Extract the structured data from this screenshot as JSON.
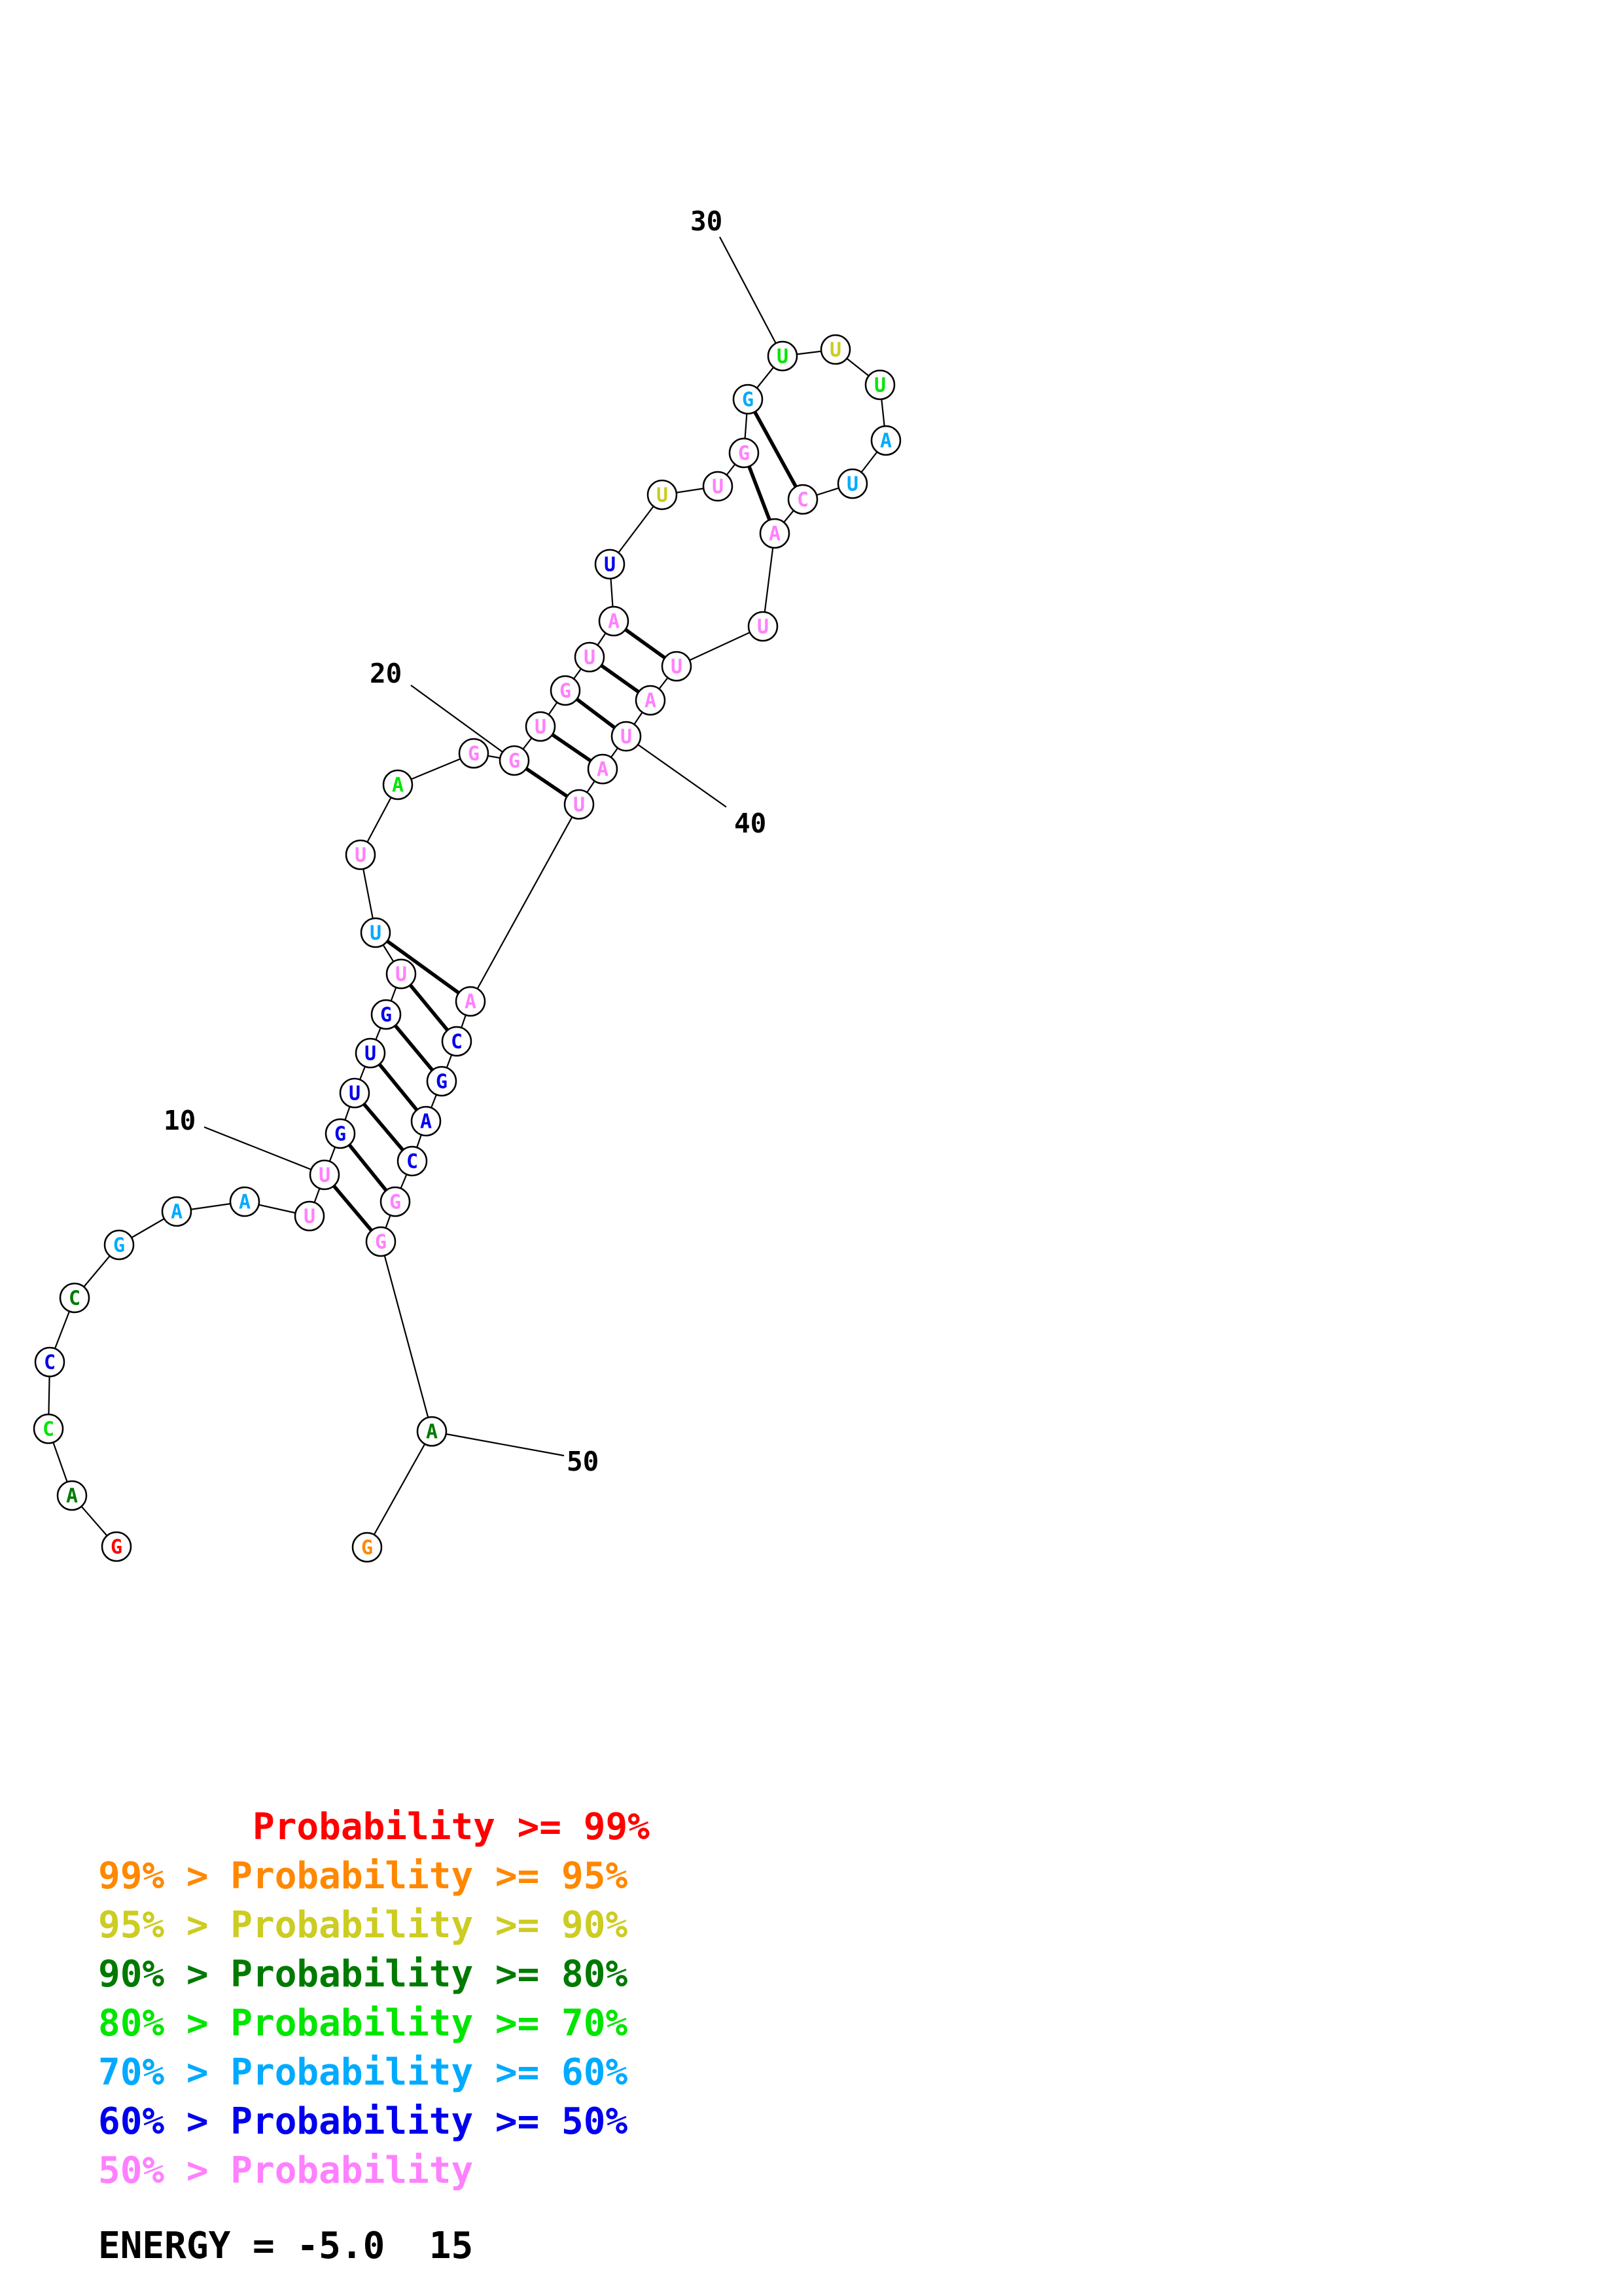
{
  "sequence": [
    {
      "base": "G",
      "color": "#ff0000"
    },
    {
      "base": "A",
      "color": "#007a00"
    },
    {
      "base": "C",
      "color": "#00e600"
    },
    {
      "base": "C",
      "color": "#0000ee"
    },
    {
      "base": "C",
      "color": "#007a00"
    },
    {
      "base": "G",
      "color": "#00aaff"
    },
    {
      "base": "A",
      "color": "#00aaff"
    },
    {
      "base": "A",
      "color": "#00aaff"
    },
    {
      "base": "U",
      "color": "#ff80ff"
    },
    {
      "base": "U",
      "color": "#ff80ff"
    },
    {
      "base": "G",
      "color": "#0000ee"
    },
    {
      "base": "U",
      "color": "#0000ee"
    },
    {
      "base": "U",
      "color": "#0000ee"
    },
    {
      "base": "G",
      "color": "#0000ee"
    },
    {
      "base": "U",
      "color": "#ff80ff"
    },
    {
      "base": "U",
      "color": "#00aaff"
    },
    {
      "base": "U",
      "color": "#ff80ff"
    },
    {
      "base": "A",
      "color": "#00e600"
    },
    {
      "base": "G",
      "color": "#ff80ff"
    },
    {
      "base": "G",
      "color": "#ff80ff"
    },
    {
      "base": "U",
      "color": "#ff80ff"
    },
    {
      "base": "G",
      "color": "#ff80ff"
    },
    {
      "base": "U",
      "color": "#ff80ff"
    },
    {
      "base": "A",
      "color": "#ff80ff"
    },
    {
      "base": "U",
      "color": "#0000ee"
    },
    {
      "base": "U",
      "color": "#cccc22"
    },
    {
      "base": "U",
      "color": "#ff80ff"
    },
    {
      "base": "G",
      "color": "#ff80ff"
    },
    {
      "base": "G",
      "color": "#00aaff"
    },
    {
      "base": "U",
      "color": "#00e600"
    },
    {
      "base": "U",
      "color": "#cccc22"
    },
    {
      "base": "U",
      "color": "#00e600"
    },
    {
      "base": "A",
      "color": "#00aaff"
    },
    {
      "base": "U",
      "color": "#00aaff"
    },
    {
      "base": "C",
      "color": "#ff80ff"
    },
    {
      "base": "A",
      "color": "#ff80ff"
    },
    {
      "base": "U",
      "color": "#ff80ff"
    },
    {
      "base": "U",
      "color": "#ff80ff"
    },
    {
      "base": "A",
      "color": "#ff80ff"
    },
    {
      "base": "U",
      "color": "#ff80ff"
    },
    {
      "base": "A",
      "color": "#ff80ff"
    },
    {
      "base": "U",
      "color": "#ff80ff"
    },
    {
      "base": "A",
      "color": "#ff80ff"
    },
    {
      "base": "C",
      "color": "#0000ee"
    },
    {
      "base": "G",
      "color": "#0000ee"
    },
    {
      "base": "A",
      "color": "#0000ee"
    },
    {
      "base": "C",
      "color": "#0000ee"
    },
    {
      "base": "G",
      "color": "#ff80ff"
    },
    {
      "base": "G",
      "color": "#ff80ff"
    },
    {
      "base": "A",
      "color": "#007a00"
    },
    {
      "base": "G",
      "color": "#ff8800"
    }
  ],
  "base_pairs": [
    [
      9,
      48
    ],
    [
      10,
      47
    ],
    [
      11,
      46
    ],
    [
      12,
      45
    ],
    [
      13,
      44
    ],
    [
      14,
      43
    ],
    [
      15,
      42
    ],
    [
      19,
      41
    ],
    [
      20,
      40
    ],
    [
      21,
      39
    ],
    [
      22,
      38
    ],
    [
      23,
      37
    ],
    [
      27,
      35
    ],
    [
      28,
      34
    ]
  ],
  "position_labels": [
    {
      "index": 10,
      "text": "10"
    },
    {
      "index": 20,
      "text": "20"
    },
    {
      "index": 30,
      "text": "30"
    },
    {
      "index": 40,
      "text": "40"
    },
    {
      "index": 50,
      "text": "50"
    }
  ],
  "legend": [
    {
      "prefix": "       ",
      "text": "Probability >= 99%",
      "color": "#ff0000"
    },
    {
      "prefix": "",
      "text": "99% > Probability >= 95%",
      "color": "#ff8800"
    },
    {
      "prefix": "",
      "text": "95% > Probability >= 90%",
      "color": "#cccc22"
    },
    {
      "prefix": "",
      "text": "90% > Probability >= 80%",
      "color": "#007a00"
    },
    {
      "prefix": "",
      "text": "80% > Probability >= 70%",
      "color": "#00e600"
    },
    {
      "prefix": "",
      "text": "70% > Probability >= 60%",
      "color": "#00aaff"
    },
    {
      "prefix": "",
      "text": "60% > Probability >= 50%",
      "color": "#0000ee"
    },
    {
      "prefix": "",
      "text": "50% > Probability",
      "color": "#ff80ff"
    }
  ],
  "energy": {
    "text": "ENERGY = -5.0  15",
    "color": "#000000"
  }
}
